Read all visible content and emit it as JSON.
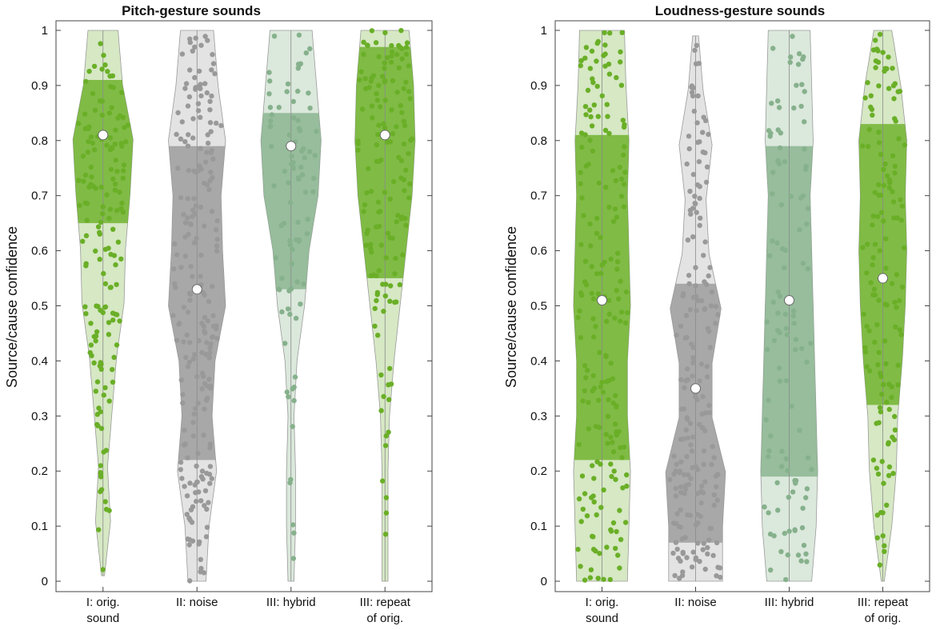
{
  "figure": {
    "ylabel": "Source/cause confidence",
    "colors": {
      "green": "#6aaf27",
      "green_light": "#d6e8c4",
      "gray": "#999999",
      "gray_light": "#e3e3e3",
      "hybrid": "#86b18c",
      "hybrid_light": "#dbe8dc",
      "median": "#ffffff",
      "axis": "#444444"
    }
  },
  "chart_data": [
    {
      "type": "violin",
      "title": "Pitch-gesture sounds",
      "ylabel": "Source/cause confidence",
      "ylim": [
        0,
        1
      ],
      "yticks": [
        "0",
        "0.1",
        "0.2",
        "0.3",
        "0.4",
        "0.5",
        "0.6",
        "0.7",
        "0.8",
        "0.9",
        "1"
      ],
      "categories": [
        {
          "line1": "I: orig.",
          "line2": "sound"
        },
        {
          "line1": "II: noise",
          "line2": ""
        },
        {
          "line1": "III: hybrid",
          "line2": ""
        },
        {
          "line1": "III: repeat",
          "line2": "of orig."
        }
      ],
      "series": [
        {
          "color": "green",
          "median": 0.81,
          "q1": 0.65,
          "q3": 0.91,
          "min": 0.01,
          "max": 1.0,
          "n": 160,
          "density": [
            0.05,
            0.25,
            0.15,
            0.3,
            0.45,
            0.7,
            0.75,
            0.9,
            1.0,
            0.65,
            0.5
          ]
        },
        {
          "color": "gray",
          "median": 0.53,
          "q1": 0.22,
          "q3": 0.79,
          "min": 0.0,
          "max": 1.0,
          "n": 220,
          "density": [
            0.3,
            0.4,
            0.65,
            0.5,
            0.6,
            0.95,
            0.85,
            0.8,
            0.95,
            0.7,
            0.55
          ]
        },
        {
          "color": "hybrid",
          "median": 0.79,
          "q1": 0.53,
          "q3": 0.85,
          "min": 0.0,
          "max": 1.0,
          "n": 90,
          "density": [
            0.1,
            0.15,
            0.15,
            0.1,
            0.2,
            0.45,
            0.6,
            0.9,
            1.0,
            0.85,
            0.7
          ]
        },
        {
          "color": "green",
          "median": 0.81,
          "q1": 0.55,
          "q3": 0.97,
          "min": 0.0,
          "max": 1.0,
          "n": 150,
          "density": [
            0.1,
            0.1,
            0.1,
            0.15,
            0.3,
            0.5,
            0.7,
            0.9,
            1.0,
            0.95,
            0.8
          ]
        }
      ]
    },
    {
      "type": "violin",
      "title": "Loudness-gesture sounds",
      "ylabel": "Source/cause confidence",
      "ylim": [
        0,
        1
      ],
      "yticks": [
        "0",
        "0.1",
        "0.2",
        "0.3",
        "0.4",
        "0.5",
        "0.6",
        "0.7",
        "0.8",
        "0.9",
        "1"
      ],
      "categories": [
        {
          "line1": "I: orig.",
          "line2": "sound"
        },
        {
          "line1": "II: noise",
          "line2": ""
        },
        {
          "line1": "III: hybrid",
          "line2": ""
        },
        {
          "line1": "III: repeat",
          "line2": "of orig."
        }
      ],
      "series": [
        {
          "color": "green",
          "median": 0.51,
          "q1": 0.22,
          "q3": 0.81,
          "min": 0.0,
          "max": 1.0,
          "n": 200,
          "density": [
            0.85,
            0.9,
            0.95,
            0.85,
            0.85,
            0.95,
            0.9,
            0.85,
            0.9,
            0.8,
            0.75
          ]
        },
        {
          "color": "gray",
          "median": 0.35,
          "q1": 0.07,
          "q3": 0.54,
          "min": 0.0,
          "max": 0.99,
          "n": 200,
          "density": [
            0.9,
            0.9,
            1.0,
            0.55,
            0.55,
            0.85,
            0.45,
            0.35,
            0.55,
            0.25,
            0.1
          ]
        },
        {
          "color": "hybrid",
          "median": 0.51,
          "q1": 0.19,
          "q3": 0.79,
          "min": 0.0,
          "max": 1.0,
          "n": 110,
          "density": [
            0.75,
            0.9,
            0.95,
            0.9,
            0.85,
            0.8,
            0.75,
            0.7,
            0.8,
            0.75,
            0.7
          ]
        },
        {
          "color": "green",
          "median": 0.55,
          "q1": 0.32,
          "q3": 0.83,
          "min": 0.0,
          "max": 1.0,
          "n": 140,
          "density": [
            0.05,
            0.3,
            0.45,
            0.5,
            0.65,
            0.75,
            0.8,
            0.75,
            0.8,
            0.6,
            0.3
          ]
        }
      ]
    }
  ]
}
